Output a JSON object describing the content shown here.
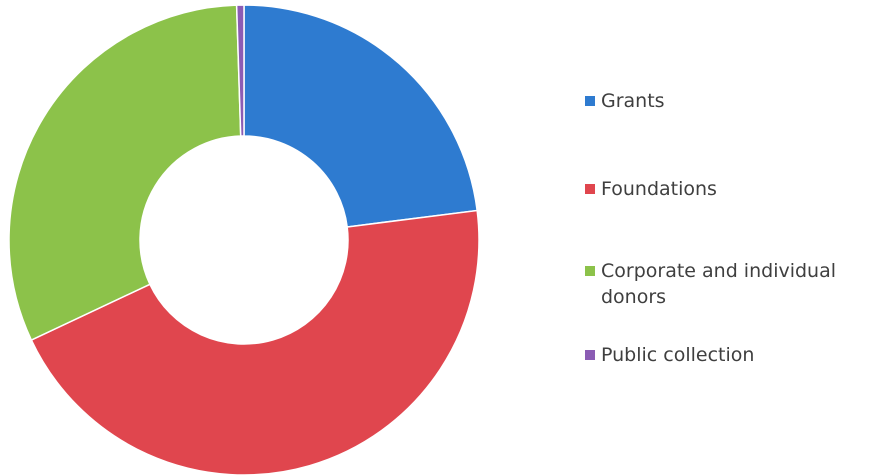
{
  "chart_data": {
    "type": "pie",
    "donut": true,
    "title": "",
    "legend_position": "right",
    "series": [
      {
        "name": "Grants",
        "value": 23,
        "color": "#2E7BD0"
      },
      {
        "name": "Foundations",
        "value": 45,
        "color": "#E0464E"
      },
      {
        "name": "Corporate and individual donors",
        "value": 31.5,
        "color": "#8CC24A"
      },
      {
        "name": "Public collection",
        "value": 0.5,
        "color": "#8B5CB4"
      }
    ]
  }
}
